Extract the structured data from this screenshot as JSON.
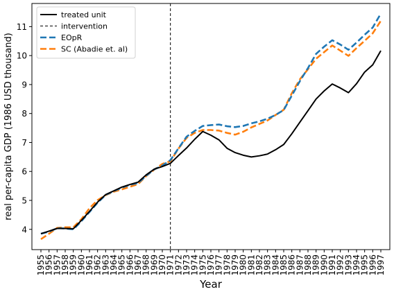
{
  "chart_data": {
    "type": "line",
    "title": "",
    "xlabel": "Year",
    "ylabel": "real per-capita GDP (1986 USD thousand)",
    "xlim": [
      1955,
      1997
    ],
    "ylim": [
      3.3,
      11.8
    ],
    "grid": false,
    "legend_position": "top-left",
    "x": [
      1955,
      1956,
      1957,
      1958,
      1959,
      1960,
      1961,
      1962,
      1963,
      1964,
      1965,
      1966,
      1967,
      1968,
      1969,
      1970,
      1971,
      1972,
      1973,
      1974,
      1975,
      1976,
      1977,
      1978,
      1979,
      1980,
      1981,
      1982,
      1983,
      1984,
      1985,
      1986,
      1987,
      1988,
      1989,
      1990,
      1991,
      1992,
      1993,
      1994,
      1995,
      1996,
      1997
    ],
    "x_tick_labels": [
      "1955",
      "1956",
      "1957",
      "1958",
      "1959",
      "1960",
      "1961",
      "1962",
      "1963",
      "1964",
      "1965",
      "1966",
      "1967",
      "1968",
      "1969",
      "1970",
      "1971",
      "1972",
      "1973",
      "1974",
      "1975",
      "1976",
      "1977",
      "1978",
      "1979",
      "1980",
      "1981",
      "1982",
      "1983",
      "1984",
      "1985",
      "1986",
      "1987",
      "1988",
      "1989",
      "1990",
      "1991",
      "1992",
      "1993",
      "1994",
      "1995",
      "1996",
      "1997"
    ],
    "y_ticks": [
      4,
      5,
      6,
      7,
      8,
      9,
      10,
      11
    ],
    "intervention_year": 1971,
    "series": [
      {
        "name": "treated unit",
        "color": "#000000",
        "style": "solid",
        "values": [
          3.85,
          3.94,
          4.03,
          4.03,
          4.02,
          4.31,
          4.62,
          4.94,
          5.2,
          5.33,
          5.46,
          5.55,
          5.63,
          5.88,
          6.08,
          6.17,
          6.28,
          6.55,
          6.81,
          7.11,
          7.38,
          7.25,
          7.09,
          6.8,
          6.65,
          6.56,
          6.5,
          6.54,
          6.6,
          6.75,
          6.93,
          7.3,
          7.7,
          8.1,
          8.5,
          8.78,
          9.02,
          8.88,
          8.72,
          9.03,
          9.43,
          9.68,
          10.17
        ]
      },
      {
        "name": "intervention",
        "color": "#000000",
        "style": "thin-dashed"
      },
      {
        "name": "EOpR",
        "color": "#1f77b4",
        "style": "dashed",
        "values": [
          3.85,
          3.92,
          4.04,
          4.03,
          4.0,
          4.28,
          4.6,
          4.92,
          5.19,
          5.32,
          5.44,
          5.54,
          5.6,
          5.85,
          6.07,
          6.2,
          6.39,
          6.8,
          7.2,
          7.4,
          7.57,
          7.6,
          7.62,
          7.56,
          7.53,
          7.57,
          7.66,
          7.73,
          7.82,
          7.95,
          8.12,
          8.62,
          9.12,
          9.57,
          10.06,
          10.31,
          10.53,
          10.38,
          10.2,
          10.45,
          10.72,
          10.97,
          11.45
        ]
      },
      {
        "name": "SC (Abadie et. al)",
        "color": "#ff7f0e",
        "style": "dashed",
        "values": [
          3.66,
          3.85,
          4.05,
          4.07,
          4.07,
          4.35,
          4.73,
          5.01,
          5.18,
          5.3,
          5.38,
          5.47,
          5.56,
          5.84,
          6.06,
          6.26,
          6.35,
          6.79,
          7.16,
          7.33,
          7.43,
          7.43,
          7.41,
          7.33,
          7.27,
          7.37,
          7.52,
          7.64,
          7.76,
          7.95,
          8.13,
          8.7,
          9.18,
          9.53,
          9.89,
          10.12,
          10.35,
          10.17,
          9.99,
          10.26,
          10.51,
          10.77,
          11.2
        ]
      }
    ]
  }
}
